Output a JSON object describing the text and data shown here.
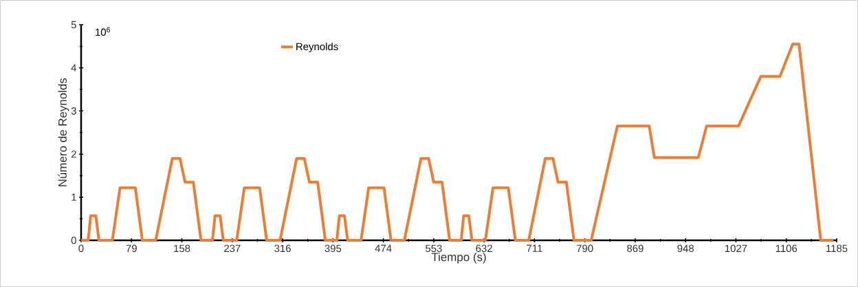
{
  "chart_data": {
    "type": "line",
    "xlabel": "Tiempo (s)",
    "ylabel": "Número de Reynolds",
    "annotations": [
      "10$^{6}$"
    ],
    "x": [
      0,
      11,
      15,
      23,
      28,
      49,
      61,
      85,
      96,
      117,
      143,
      155,
      163,
      176,
      188,
      195,
      206,
      210,
      218,
      223,
      244,
      256,
      280,
      291,
      312,
      338,
      350,
      358,
      371,
      383,
      390,
      401,
      405,
      413,
      418,
      439,
      451,
      475,
      486,
      507,
      533,
      545,
      553,
      566,
      578,
      585,
      596,
      600,
      608,
      613,
      634,
      646,
      670,
      681,
      702,
      728,
      740,
      748,
      761,
      773,
      780,
      800,
      841,
      891,
      899,
      968,
      981,
      1031,
      1066,
      1096,
      1116,
      1126,
      1160,
      1180
    ],
    "series": [
      {
        "name": "Reynolds",
        "color": "#ed7d31",
        "values": [
          0,
          0,
          0.57,
          0.57,
          0,
          0,
          1.22,
          1.22,
          0,
          0,
          1.9,
          1.9,
          1.35,
          1.35,
          0,
          0,
          0,
          0.57,
          0.57,
          0,
          0,
          1.22,
          1.22,
          0,
          0,
          1.9,
          1.9,
          1.35,
          1.35,
          0,
          0,
          0,
          0.57,
          0.57,
          0,
          0,
          1.22,
          1.22,
          0,
          0,
          1.9,
          1.9,
          1.35,
          1.35,
          0,
          0,
          0,
          0.57,
          0.57,
          0,
          0,
          1.22,
          1.22,
          0,
          0,
          1.9,
          1.9,
          1.35,
          1.35,
          0,
          0,
          0,
          2.65,
          2.65,
          1.92,
          1.92,
          2.65,
          2.65,
          3.8,
          3.8,
          4.55,
          4.55,
          0,
          0
        ]
      }
    ],
    "xlim": [
      0,
      1185
    ],
    "ylim": [
      0,
      5
    ],
    "xticks": [
      0,
      79,
      158,
      237,
      316,
      395,
      474,
      553,
      632,
      711,
      790,
      869,
      948,
      1027,
      1106,
      1185
    ],
    "yticks": [
      0,
      1,
      2,
      3,
      4,
      5
    ],
    "legend": "top"
  }
}
